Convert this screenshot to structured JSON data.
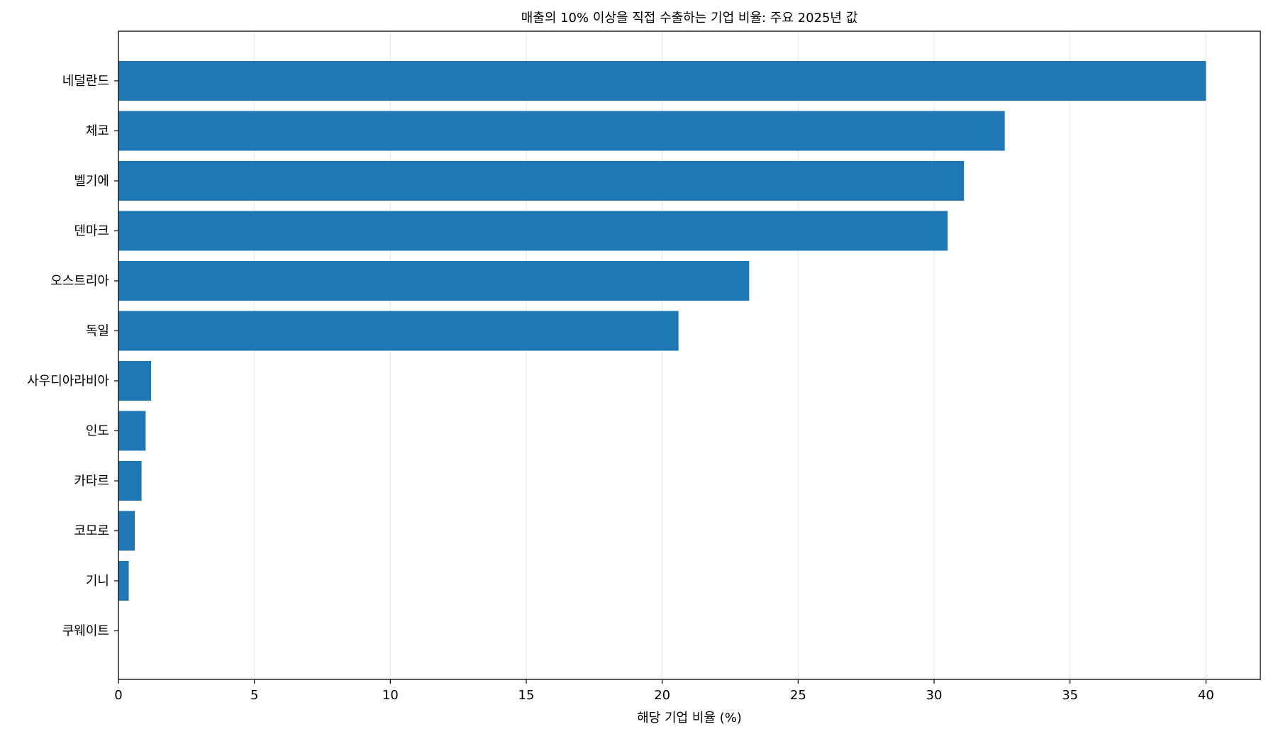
{
  "chart_data": {
    "type": "bar",
    "orientation": "horizontal",
    "title": "매출의 10% 이상을 직접 수출하는 기업 비율: 주요 2025년 값",
    "xlabel": "해당 기업 비율 (%)",
    "ylabel": "",
    "xlim": [
      0,
      42
    ],
    "xticks": [
      0,
      5,
      10,
      15,
      20,
      25,
      30,
      35,
      40
    ],
    "grid": "x",
    "categories": [
      "네덜란드",
      "체코",
      "벨기에",
      "덴마크",
      "오스트리아",
      "독일",
      "사우디아라비아",
      "인도",
      "카타르",
      "코모로",
      "기니",
      "쿠웨이트"
    ],
    "values": [
      40.0,
      32.6,
      31.1,
      30.5,
      23.2,
      20.6,
      1.2,
      1.0,
      0.85,
      0.6,
      0.38,
      0.0
    ],
    "bar_color": "#1f77b4"
  }
}
